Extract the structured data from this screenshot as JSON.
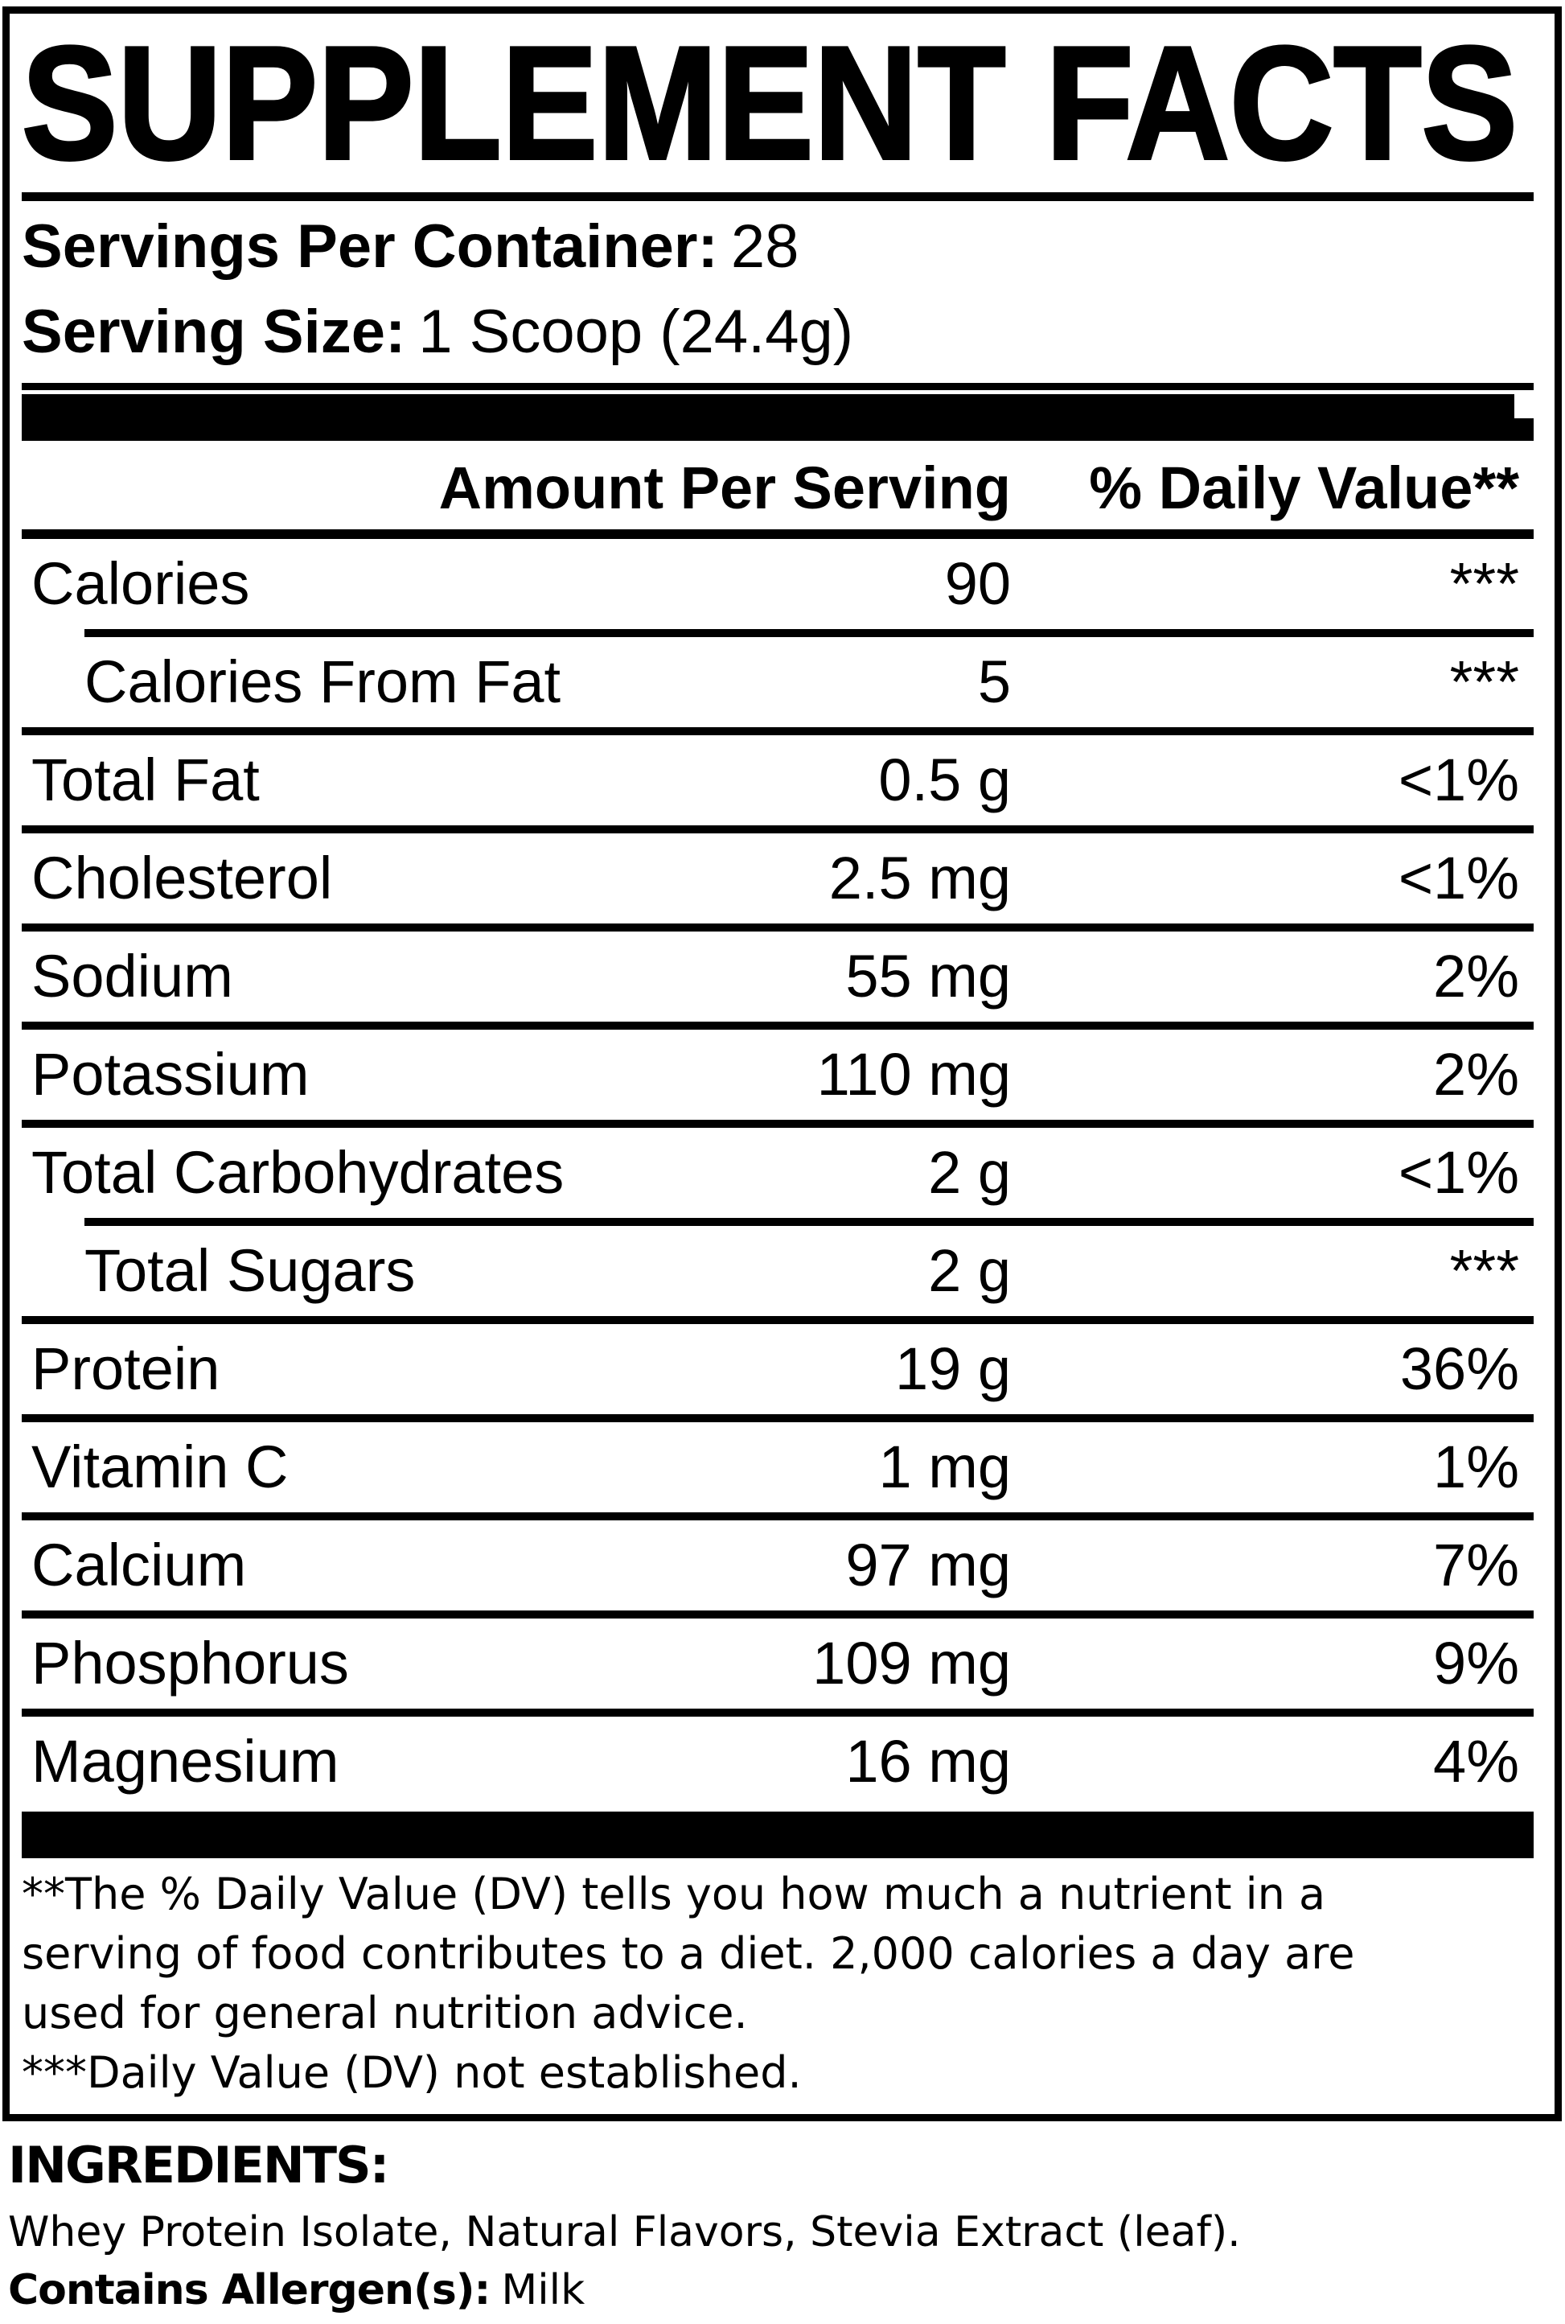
{
  "title": "SUPPLEMENT FACTS",
  "serving": {
    "servings_label": "Servings Per Container:",
    "servings_value": "28",
    "size_label": "Serving Size:",
    "size_value": "1 Scoop (24.4g)"
  },
  "header": {
    "amount": "Amount Per Serving",
    "dv": "% Daily Value**"
  },
  "rows": [
    {
      "name": "Calories",
      "amount": "90",
      "dv": "***"
    },
    {
      "name": "Calories From Fat",
      "amount": "5",
      "dv": "***"
    },
    {
      "name": "Total Fat",
      "amount": "0.5 g",
      "dv": "<1%"
    },
    {
      "name": "Cholesterol",
      "amount": "2.5 mg",
      "dv": "<1%"
    },
    {
      "name": "Sodium",
      "amount": "55 mg",
      "dv": "2%"
    },
    {
      "name": "Potassium",
      "amount": "110 mg",
      "dv": "2%"
    },
    {
      "name": "Total Carbohydrates",
      "amount": "2 g",
      "dv": "<1%"
    },
    {
      "name": "Total Sugars",
      "amount": "2 g",
      "dv": "***"
    },
    {
      "name": "Protein",
      "amount": "19 g",
      "dv": "36%"
    },
    {
      "name": "Vitamin C",
      "amount": "1 mg",
      "dv": "1%"
    },
    {
      "name": "Calcium",
      "amount": "97 mg",
      "dv": "7%"
    },
    {
      "name": "Phosphorus",
      "amount": "109 mg",
      "dv": "9%"
    },
    {
      "name": "Magnesium",
      "amount": "16 mg",
      "dv": "4%"
    }
  ],
  "footnote": {
    "line1": "**The % Daily Value (DV) tells you how much a nutrient in a",
    "line2": "serving of food contributes to a diet. 2,000 calories a day are",
    "line3": "used for general nutrition advice.",
    "line4": "***Daily Value (DV) not established."
  },
  "ingredients": {
    "heading": "INGREDIENTS:",
    "list": "Whey Protein Isolate, Natural Flavors, Stevia Extract (leaf).",
    "allergen_label": "Contains Allergen(s):",
    "allergen_value": "Milk"
  },
  "colors": {
    "ink": "#000000",
    "paper": "#ffffff"
  }
}
